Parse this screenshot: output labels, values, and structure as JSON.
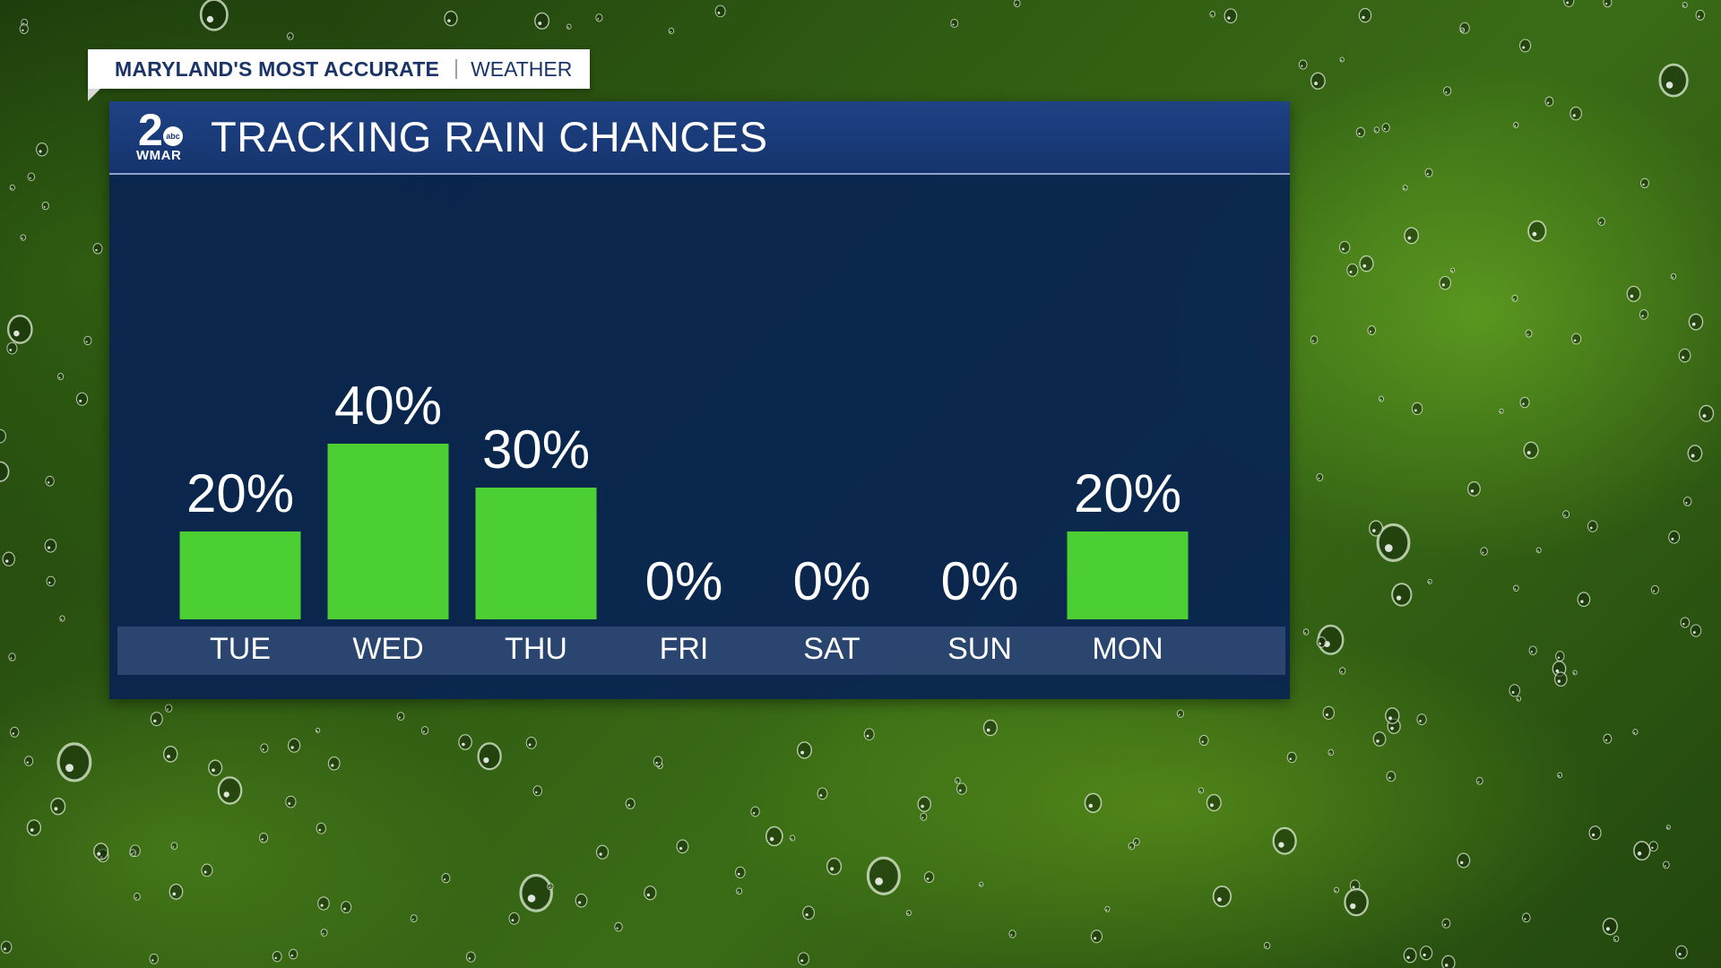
{
  "header_tag": {
    "left": "MARYLAND'S MOST ACCURATE",
    "right": "WEATHER"
  },
  "panel": {
    "title": "TRACKING RAIN CHANCES",
    "logo": {
      "number": "2",
      "network": "abc",
      "call_sign": "WMAR"
    }
  },
  "colors": {
    "bar": "#4ccf33",
    "panel": "#0b2454",
    "text": "#ffffff"
  },
  "chart_data": {
    "type": "bar",
    "title": "TRACKING RAIN CHANCES",
    "categories": [
      "TUE",
      "WED",
      "THU",
      "FRI",
      "SAT",
      "SUN",
      "MON"
    ],
    "values": [
      20,
      40,
      30,
      0,
      0,
      0,
      20
    ],
    "value_labels": [
      "20%",
      "40%",
      "30%",
      "0%",
      "0%",
      "0%",
      "20%"
    ],
    "unit": "%",
    "ylim": [
      0,
      40
    ],
    "grid": false,
    "legend": "none"
  }
}
